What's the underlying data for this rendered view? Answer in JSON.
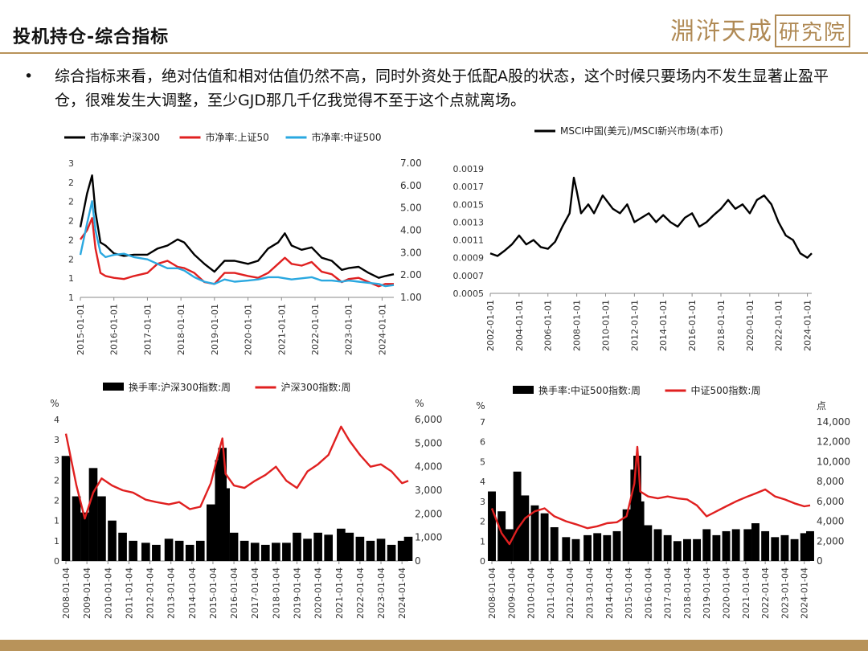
{
  "header": {
    "title": "投机持仓-综合指标",
    "logo_text": "淵浒天成",
    "logo_seal": "研究院",
    "accent_color": "#b8935a"
  },
  "bullet": {
    "symbol": "•",
    "text": "综合指标来看，绝对估值和相对估值仍然不高，同时外资处于低配A股的状态，这个时候只要场内不发生显著止盈平仓，很难发生大调整，至少GJD那几千亿我觉得不至于这个点就离场。"
  },
  "chart_data": [
    {
      "type": "line",
      "legend": [
        "市净率:沪深300",
        "市净率:上证50",
        "市净率:中证500"
      ],
      "legend_placement": "top",
      "colors": [
        "#000000",
        "#e02020",
        "#2aa8e0"
      ],
      "x_ticks": [
        "2015-01-01",
        "2016-01-01",
        "2017-01-01",
        "2018-01-01",
        "2019-01-01",
        "2020-01-01",
        "2021-01-01",
        "2022-01-01",
        "2023-01-01",
        "2024-01-01"
      ],
      "y_left_ticks": [
        "3",
        "2",
        "2",
        "2",
        "2",
        "2",
        "1",
        "1"
      ],
      "y_left_axis_series": [
        "市净率:沪深300",
        "市净率:上证50"
      ],
      "y_right_ticks": [
        "7.00",
        "6.00",
        "5.00",
        "4.00",
        "3.00",
        "2.00",
        "1.00"
      ],
      "y_right_range": [
        1,
        7
      ],
      "y_right_axis_series": [
        "市净率:中证500"
      ],
      "x": [
        2015.0,
        2015.2,
        2015.35,
        2015.45,
        2015.6,
        2015.75,
        2016.0,
        2016.3,
        2016.6,
        2017.0,
        2017.3,
        2017.6,
        2017.9,
        2018.1,
        2018.4,
        2018.7,
        2019.0,
        2019.3,
        2019.6,
        2020.0,
        2020.3,
        2020.6,
        2020.9,
        2021.1,
        2021.3,
        2021.6,
        2021.9,
        2022.2,
        2022.5,
        2022.8,
        2023.0,
        2023.3,
        2023.6,
        2023.9,
        2024.1,
        2024.35
      ],
      "series": [
        {
          "name": "市净率:沪深300",
          "values": [
            2.05,
            2.6,
            2.9,
            2.3,
            1.8,
            1.75,
            1.62,
            1.58,
            1.6,
            1.6,
            1.7,
            1.75,
            1.85,
            1.8,
            1.6,
            1.45,
            1.32,
            1.5,
            1.5,
            1.45,
            1.5,
            1.7,
            1.8,
            1.95,
            1.75,
            1.68,
            1.72,
            1.55,
            1.5,
            1.35,
            1.38,
            1.4,
            1.3,
            1.22,
            1.25,
            1.28
          ]
        },
        {
          "name": "市净率:上证50",
          "values": [
            1.85,
            2.0,
            2.2,
            1.7,
            1.3,
            1.25,
            1.22,
            1.2,
            1.25,
            1.3,
            1.45,
            1.5,
            1.4,
            1.38,
            1.3,
            1.15,
            1.12,
            1.3,
            1.3,
            1.25,
            1.22,
            1.3,
            1.45,
            1.55,
            1.45,
            1.42,
            1.48,
            1.32,
            1.28,
            1.15,
            1.2,
            1.22,
            1.15,
            1.08,
            1.12,
            1.12
          ]
        },
        {
          "name": "市净率:中证500",
          "values": [
            2.9,
            4.3,
            5.3,
            4.0,
            3.0,
            2.8,
            2.9,
            2.95,
            2.8,
            2.7,
            2.5,
            2.3,
            2.3,
            2.2,
            1.9,
            1.7,
            1.6,
            1.8,
            1.7,
            1.75,
            1.8,
            1.9,
            1.9,
            1.85,
            1.8,
            1.85,
            1.9,
            1.75,
            1.75,
            1.7,
            1.75,
            1.7,
            1.65,
            1.6,
            1.5,
            1.55
          ]
        }
      ]
    },
    {
      "type": "line",
      "legend": [
        "MSCI中国(美元)/MSCI新兴市场(本币)"
      ],
      "legend_placement": "top",
      "colors": [
        "#000000"
      ],
      "x_ticks": [
        "2002-01-01",
        "2004-01-01",
        "2006-01-01",
        "2008-01-01",
        "2010-01-01",
        "2012-01-01",
        "2014-01-01",
        "2016-01-01",
        "2018-01-01",
        "2020-01-01",
        "2022-01-01",
        "2024-01-01"
      ],
      "y_ticks": [
        "0.0019",
        "0.0017",
        "0.0015",
        "0.0013",
        "0.0011",
        "0.0009",
        "0.0007",
        "0.0005"
      ],
      "ylim": [
        0.0005,
        0.0019
      ],
      "x": [
        2002.0,
        2002.5,
        2003.0,
        2003.5,
        2004.0,
        2004.5,
        2005.0,
        2005.5,
        2006.0,
        2006.5,
        2007.0,
        2007.5,
        2007.8,
        2008.0,
        2008.3,
        2008.8,
        2009.2,
        2009.8,
        2010.5,
        2011.0,
        2011.5,
        2012.0,
        2012.5,
        2013.0,
        2013.5,
        2014.0,
        2014.5,
        2015.0,
        2015.5,
        2016.0,
        2016.5,
        2017.0,
        2017.5,
        2018.0,
        2018.5,
        2019.0,
        2019.5,
        2020.0,
        2020.5,
        2021.0,
        2021.5,
        2022.0,
        2022.5,
        2023.0,
        2023.5,
        2024.0,
        2024.3
      ],
      "series": [
        {
          "name": "MSCI中国(美元)/MSCI新兴市场(本币)",
          "values": [
            0.00095,
            0.00092,
            0.00098,
            0.00105,
            0.00115,
            0.00105,
            0.0011,
            0.00102,
            0.001,
            0.00108,
            0.00125,
            0.0014,
            0.0018,
            0.00165,
            0.0014,
            0.0015,
            0.0014,
            0.0016,
            0.00145,
            0.0014,
            0.0015,
            0.0013,
            0.00135,
            0.0014,
            0.0013,
            0.00138,
            0.0013,
            0.00125,
            0.00135,
            0.0014,
            0.00125,
            0.0013,
            0.00138,
            0.00145,
            0.00155,
            0.00145,
            0.0015,
            0.0014,
            0.00155,
            0.0016,
            0.0015,
            0.0013,
            0.00115,
            0.0011,
            0.00095,
            0.0009,
            0.00095
          ]
        }
      ]
    },
    {
      "type": "bar+line",
      "legend": [
        "换手率:沪深300指数:周",
        "沪深300指数:周"
      ],
      "legend_placement": "top",
      "colors": [
        "#000000",
        "#e02020"
      ],
      "y_left_unit": "%",
      "y_right_unit": "%",
      "y_left_ticks": [
        "4",
        "3",
        "3",
        "2",
        "2",
        "1",
        "1",
        "0"
      ],
      "y_left_axis_series": [
        "换手率:沪深300指数:周"
      ],
      "y_right_ticks": [
        "6,000",
        "5,000",
        "4,000",
        "3,000",
        "2,000",
        "1,000",
        "0"
      ],
      "y_right_range": [
        0,
        6000
      ],
      "y_right_axis_series": [
        "沪深300指数:周"
      ],
      "x_ticks": [
        "2008-01-04",
        "2009-01-04",
        "2010-01-04",
        "2011-01-04",
        "2012-01-04",
        "2013-01-04",
        "2014-01-04",
        "2015-01-04",
        "2016-01-04",
        "2017-01-04",
        "2018-01-04",
        "2019-01-04",
        "2020-01-04",
        "2021-01-04",
        "2022-01-04",
        "2023-01-04",
        "2024-01-04"
      ],
      "x": [
        2008.0,
        2008.5,
        2008.9,
        2009.3,
        2009.7,
        2010.2,
        2010.7,
        2011.2,
        2011.8,
        2012.3,
        2012.9,
        2013.4,
        2013.9,
        2014.4,
        2014.9,
        2015.3,
        2015.45,
        2015.6,
        2016.0,
        2016.5,
        2017.0,
        2017.5,
        2018.0,
        2018.5,
        2019.0,
        2019.5,
        2020.0,
        2020.5,
        2021.1,
        2021.5,
        2022.0,
        2022.5,
        2023.0,
        2023.5,
        2024.0,
        2024.3
      ],
      "series": [
        {
          "name": "换手率:沪深300指数:周",
          "values": [
            2.6,
            1.6,
            1.2,
            2.3,
            1.6,
            1.0,
            0.7,
            0.5,
            0.45,
            0.4,
            0.55,
            0.5,
            0.4,
            0.5,
            1.4,
            2.5,
            2.8,
            1.8,
            0.7,
            0.5,
            0.45,
            0.4,
            0.45,
            0.45,
            0.7,
            0.55,
            0.7,
            0.65,
            0.8,
            0.7,
            0.6,
            0.5,
            0.55,
            0.4,
            0.5,
            0.6
          ]
        },
        {
          "name": "沪深300指数:周",
          "values": [
            5400,
            3200,
            1800,
            2900,
            3500,
            3200,
            3000,
            2900,
            2600,
            2500,
            2400,
            2500,
            2200,
            2300,
            3300,
            4700,
            5200,
            3700,
            3200,
            3100,
            3400,
            3650,
            4000,
            3400,
            3100,
            3800,
            4100,
            4500,
            5700,
            5100,
            4500,
            4000,
            4100,
            3800,
            3300,
            3400
          ]
        }
      ]
    },
    {
      "type": "bar+line",
      "legend": [
        "换手率:中证500指数:周",
        "中证500指数:周"
      ],
      "legend_placement": "top",
      "colors": [
        "#000000",
        "#e02020"
      ],
      "y_left_unit": "%",
      "y_right_unit": "点",
      "y_left_ticks": [
        "7",
        "6",
        "5",
        "4",
        "3",
        "2",
        "1",
        "0"
      ],
      "y_left_axis_series": [
        "换手率:中证500指数:周"
      ],
      "y_right_ticks": [
        "14,000",
        "12,000",
        "10,000",
        "8,000",
        "6,000",
        "4,000",
        "2,000",
        "0"
      ],
      "y_right_range": [
        0,
        14000
      ],
      "y_right_axis_series": [
        "中证500指数:周"
      ],
      "x_ticks": [
        "2008-01-04",
        "2009-01-04",
        "2010-01-04",
        "2011-01-04",
        "2012-01-04",
        "2013-01-04",
        "2014-01-04",
        "2015-01-04",
        "2016-01-04",
        "2017-01-04",
        "2018-01-04",
        "2019-01-04",
        "2020-01-04",
        "2021-01-04",
        "2022-01-04",
        "2023-01-04",
        "2024-01-04"
      ],
      "x": [
        2008.0,
        2008.5,
        2008.9,
        2009.3,
        2009.7,
        2010.2,
        2010.7,
        2011.2,
        2011.8,
        2012.3,
        2012.9,
        2013.4,
        2013.9,
        2014.4,
        2014.9,
        2015.3,
        2015.45,
        2015.6,
        2016.0,
        2016.5,
        2017.0,
        2017.5,
        2018.0,
        2018.5,
        2019.0,
        2019.5,
        2020.0,
        2020.5,
        2021.1,
        2021.5,
        2022.0,
        2022.5,
        2023.0,
        2023.5,
        2024.0,
        2024.3
      ],
      "series": [
        {
          "name": "换手率:中证500指数:周",
          "values": [
            3.5,
            2.5,
            1.6,
            4.5,
            3.3,
            2.8,
            2.4,
            1.7,
            1.2,
            1.1,
            1.3,
            1.4,
            1.3,
            1.5,
            2.6,
            4.6,
            5.3,
            3.0,
            1.8,
            1.6,
            1.3,
            1.0,
            1.1,
            1.1,
            1.6,
            1.3,
            1.5,
            1.6,
            1.6,
            1.9,
            1.5,
            1.2,
            1.3,
            1.1,
            1.4,
            1.5
          ]
        },
        {
          "name": "中证500指数:周",
          "values": [
            5300,
            2800,
            1700,
            3200,
            4300,
            5000,
            5300,
            4500,
            4000,
            3700,
            3300,
            3500,
            3800,
            3900,
            4500,
            7800,
            11500,
            7000,
            6500,
            6300,
            6500,
            6300,
            6200,
            5600,
            4500,
            5000,
            5500,
            6000,
            6500,
            6800,
            7200,
            6500,
            6200,
            5800,
            5500,
            5600
          ]
        }
      ]
    }
  ]
}
